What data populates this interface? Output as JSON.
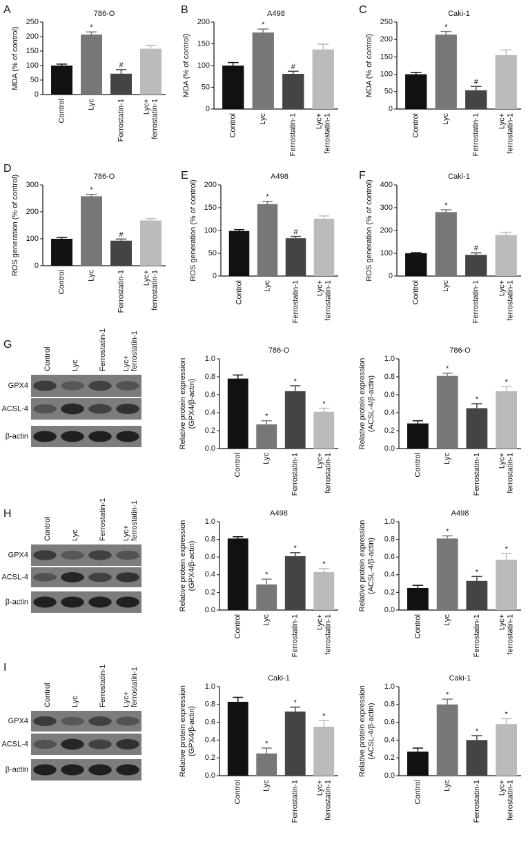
{
  "chart_data": [
    {
      "type": "bar",
      "panel_label": "A",
      "title": "786-O",
      "ylabel": [
        "MDA (% of control)"
      ],
      "categories": [
        "Control",
        "Lyc",
        "Ferrostatin-1",
        "Lyc+ ferrostatin-1"
      ],
      "values": [
        100,
        207,
        72,
        158
      ],
      "errors": [
        5,
        9,
        14,
        12
      ],
      "annotations": [
        null,
        "*",
        "#",
        null
      ],
      "colors": [
        "#111111",
        "#777777",
        "#444444",
        "#bbbbbb"
      ],
      "ylim": [
        0,
        250
      ],
      "yticks": [
        0,
        50,
        100,
        150,
        200,
        250
      ]
    },
    {
      "type": "bar",
      "panel_label": "B",
      "title": "A498",
      "ylabel": [
        "MDA (% of control)"
      ],
      "categories": [
        "Control",
        "Lyc",
        "Ferrostatin-1",
        "Lyc+ ferrostatin-1"
      ],
      "values": [
        100,
        176,
        81,
        137
      ],
      "errors": [
        7,
        8,
        6,
        12
      ],
      "annotations": [
        null,
        "*",
        "#",
        null
      ],
      "colors": [
        "#111111",
        "#777777",
        "#444444",
        "#bbbbbb"
      ],
      "ylim": [
        0,
        200
      ],
      "yticks": [
        0,
        50,
        100,
        150,
        200
      ]
    },
    {
      "type": "bar",
      "panel_label": "C",
      "title": "Caki-1",
      "ylabel": [
        "MDA (% of control)"
      ],
      "categories": [
        "Control",
        "Lyc",
        "Ferrostatin-1",
        "Lyc+ ferrostatin-1"
      ],
      "values": [
        100,
        214,
        54,
        155
      ],
      "errors": [
        5,
        9,
        11,
        15
      ],
      "annotations": [
        null,
        "*",
        "#",
        null
      ],
      "colors": [
        "#111111",
        "#777777",
        "#444444",
        "#bbbbbb"
      ],
      "ylim": [
        0,
        250
      ],
      "yticks": [
        0,
        50,
        100,
        150,
        200,
        250
      ]
    },
    {
      "type": "bar",
      "panel_label": "D",
      "title": "786-O",
      "ylabel": [
        "ROS generation (% of control)"
      ],
      "categories": [
        "Control",
        "Lyc",
        "Ferrostatin-1",
        "Lyc+ ferrostatin-1"
      ],
      "values": [
        100,
        258,
        93,
        168
      ],
      "errors": [
        5,
        7,
        6,
        7
      ],
      "annotations": [
        null,
        "*",
        "#",
        null
      ],
      "colors": [
        "#111111",
        "#777777",
        "#444444",
        "#bbbbbb"
      ],
      "ylim": [
        0,
        300
      ],
      "yticks": [
        0,
        100,
        200,
        300
      ]
    },
    {
      "type": "bar",
      "panel_label": "E",
      "title": "A498",
      "ylabel": [
        "ROS generation (% of control)"
      ],
      "categories": [
        "Control",
        "Lyc",
        "Ferrostatin-1",
        "Lyc+ ferrostatin-1"
      ],
      "values": [
        99,
        158,
        83,
        126
      ],
      "errors": [
        3,
        6,
        4,
        6
      ],
      "annotations": [
        null,
        "*",
        "#",
        null
      ],
      "colors": [
        "#111111",
        "#777777",
        "#444444",
        "#bbbbbb"
      ],
      "ylim": [
        0,
        200
      ],
      "yticks": [
        0,
        50,
        100,
        150,
        200
      ]
    },
    {
      "type": "bar",
      "panel_label": "F",
      "title": "Caki-1",
      "ylabel": [
        "ROS generation (% of control)"
      ],
      "categories": [
        "Control",
        "Lyc",
        "Ferrostatin-1",
        "Lyc+ ferrostatin-1"
      ],
      "values": [
        100,
        281,
        93,
        180
      ],
      "errors": [
        3,
        10,
        9,
        12
      ],
      "annotations": [
        null,
        "*",
        "#",
        null
      ],
      "colors": [
        "#111111",
        "#777777",
        "#444444",
        "#bbbbbb"
      ],
      "ylim": [
        0,
        400
      ],
      "yticks": [
        0,
        100,
        200,
        300,
        400
      ]
    },
    {
      "type": "bar",
      "title": "786-O",
      "ylabel": [
        "Relative protein expression",
        "(GPX4/β-actin)"
      ],
      "categories": [
        "Control",
        "Lyc",
        "Ferrostatin-1",
        "Lyc+ ferrostatin-1"
      ],
      "values": [
        0.78,
        0.27,
        0.64,
        0.41
      ],
      "errors": [
        0.04,
        0.04,
        0.06,
        0.04
      ],
      "annotations": [
        null,
        "*",
        "*",
        "*"
      ],
      "colors": [
        "#111111",
        "#777777",
        "#444444",
        "#bbbbbb"
      ],
      "ylim": [
        0,
        1
      ],
      "yticks": [
        {
          "value": 0,
          "label": "0.0"
        },
        0.2,
        0.4,
        0.6,
        0.8,
        {
          "value": 1,
          "label": "1.0"
        }
      ]
    },
    {
      "type": "bar",
      "title": "786-O",
      "ylabel": [
        "Relative protein expression",
        "(ACSL-4/β-actin)"
      ],
      "categories": [
        "Control",
        "Lyc",
        "Ferrostatin-1",
        "Lyc+ ferrostatin-1"
      ],
      "values": [
        0.28,
        0.81,
        0.45,
        0.64
      ],
      "errors": [
        0.03,
        0.03,
        0.05,
        0.05
      ],
      "annotations": [
        null,
        "*",
        "*",
        "*"
      ],
      "colors": [
        "#111111",
        "#777777",
        "#444444",
        "#bbbbbb"
      ],
      "ylim": [
        0,
        1
      ],
      "yticks": [
        {
          "value": 0,
          "label": "0.0"
        },
        0.2,
        0.4,
        0.6,
        0.8,
        {
          "value": 1,
          "label": "1.0"
        }
      ]
    },
    {
      "type": "bar",
      "title": "A498",
      "ylabel": [
        "Relative protein expression",
        "(GPX4/β-actin)"
      ],
      "categories": [
        "Control",
        "Lyc",
        "Ferrostatin-1",
        "Lyc+ ferrostatin-1"
      ],
      "values": [
        0.81,
        0.29,
        0.61,
        0.43
      ],
      "errors": [
        0.02,
        0.06,
        0.04,
        0.04
      ],
      "annotations": [
        null,
        "*",
        "*",
        "*"
      ],
      "colors": [
        "#111111",
        "#777777",
        "#444444",
        "#bbbbbb"
      ],
      "ylim": [
        0,
        1
      ],
      "yticks": [
        {
          "value": 0,
          "label": "0.0"
        },
        0.2,
        0.4,
        0.6,
        0.8,
        {
          "value": 1,
          "label": "1.0"
        }
      ]
    },
    {
      "type": "bar",
      "title": "A498",
      "ylabel": [
        "Relative protein expression",
        "(ACSL-4/β-actin)"
      ],
      "categories": [
        "Control",
        "Lyc",
        "Ferrostatin-1",
        "Lyc+ ferrostatin-1"
      ],
      "values": [
        0.25,
        0.81,
        0.33,
        0.57
      ],
      "errors": [
        0.03,
        0.03,
        0.05,
        0.07
      ],
      "annotations": [
        null,
        "*",
        "*",
        "*"
      ],
      "colors": [
        "#111111",
        "#777777",
        "#444444",
        "#bbbbbb"
      ],
      "ylim": [
        0,
        1
      ],
      "yticks": [
        {
          "value": 0,
          "label": "0.0"
        },
        0.2,
        0.4,
        0.6,
        0.8,
        {
          "value": 1,
          "label": "1.0"
        }
      ]
    },
    {
      "type": "bar",
      "title": "Caki-1",
      "ylabel": [
        "Relative protein expression",
        "(GPX4/β-actin)"
      ],
      "categories": [
        "Control",
        "Lyc",
        "Ferrostatin-1",
        "Lyc+ ferrostatin-1"
      ],
      "values": [
        0.83,
        0.25,
        0.72,
        0.55
      ],
      "errors": [
        0.05,
        0.06,
        0.05,
        0.07
      ],
      "annotations": [
        null,
        "*",
        "*",
        "*"
      ],
      "colors": [
        "#111111",
        "#777777",
        "#444444",
        "#bbbbbb"
      ],
      "ylim": [
        0,
        1
      ],
      "yticks": [
        {
          "value": 0,
          "label": "0.0"
        },
        0.2,
        0.4,
        0.6,
        0.8,
        {
          "value": 1,
          "label": "1.0"
        }
      ]
    },
    {
      "type": "bar",
      "title": "Caki-1",
      "ylabel": [
        "Relative protein expression",
        "(ACSL-4/β-actin)"
      ],
      "categories": [
        "Control",
        "Lyc",
        "Ferrostatin-1",
        "Lyc+ ferrostatin-1"
      ],
      "values": [
        0.27,
        0.8,
        0.4,
        0.58
      ],
      "errors": [
        0.04,
        0.06,
        0.05,
        0.06
      ],
      "annotations": [
        null,
        "*",
        "*",
        "*"
      ],
      "colors": [
        "#111111",
        "#777777",
        "#444444",
        "#bbbbbb"
      ],
      "ylim": [
        0,
        1
      ],
      "yticks": [
        {
          "value": 0,
          "label": "0.0"
        },
        0.2,
        0.4,
        0.6,
        0.8,
        {
          "value": 1,
          "label": "1.0"
        }
      ]
    }
  ],
  "blots": [
    {
      "panel_label": "G",
      "lanes": [
        "Control",
        "Lyc",
        "Ferrostatin-1",
        "Lyc+ ferrostatin-1"
      ],
      "rows": [
        "GPX4",
        "ACSL-4",
        "β-actin"
      ]
    },
    {
      "panel_label": "H",
      "lanes": [
        "Control",
        "Lyc",
        "Ferrostatin-1",
        "Lyc+ ferrostatin-1"
      ],
      "rows": [
        "GPX4",
        "ACSL-4",
        "β-actin"
      ]
    },
    {
      "panel_label": "I",
      "lanes": [
        "Control",
        "Lyc",
        "Ferrostatin-1",
        "Lyc+ ferrostatin-1"
      ],
      "rows": [
        "GPX4",
        "ACSL-4",
        "β-actin"
      ]
    }
  ]
}
